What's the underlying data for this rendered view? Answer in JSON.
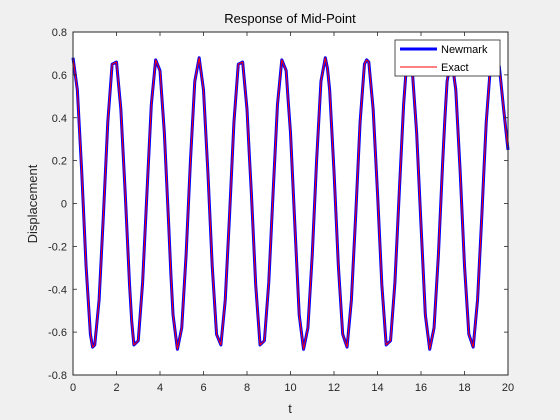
{
  "chart_data": {
    "type": "line",
    "title": "Response of Mid-Point",
    "xlabel": "t",
    "ylabel": "Displacement",
    "xlim": [
      0,
      20
    ],
    "ylim": [
      -0.8,
      0.8
    ],
    "xticks": [
      0,
      2,
      4,
      6,
      8,
      10,
      12,
      14,
      16,
      18,
      20
    ],
    "yticks": [
      -0.8,
      -0.6,
      -0.4,
      -0.2,
      0,
      0.2,
      0.4,
      0.6,
      0.8
    ],
    "x_tick_labels": [
      "0",
      "2",
      "4",
      "6",
      "8",
      "10",
      "12",
      "14",
      "16",
      "18",
      "20"
    ],
    "y_tick_labels": [
      "-0.8",
      "-0.6",
      "-0.4",
      "-0.2",
      "0",
      "0.2",
      "0.4",
      "0.6",
      "0.8"
    ],
    "grid": false,
    "legend_position": "top-right",
    "series": [
      {
        "name": "Newmark",
        "color": "#0000ff",
        "x": [
          0,
          0.2,
          0.4,
          0.6,
          0.8,
          0.9,
          1.0,
          1.2,
          1.4,
          1.6,
          1.8,
          2.0,
          2.2,
          2.4,
          2.6,
          2.7,
          2.8,
          3.0,
          3.2,
          3.4,
          3.6,
          3.8,
          4.0,
          4.2,
          4.4,
          4.5,
          4.6,
          4.8,
          5.0,
          5.2,
          5.4,
          5.6,
          5.8,
          6.0,
          6.2,
          6.3,
          6.4,
          6.6,
          6.8,
          7.0,
          7.2,
          7.4,
          7.6,
          7.8,
          8.0,
          8.1,
          8.2,
          8.4,
          8.6,
          8.8,
          9.0,
          9.2,
          9.4,
          9.6,
          9.8,
          9.9,
          10.0,
          10.2,
          10.4,
          10.6,
          10.8,
          11.0,
          11.2,
          11.4,
          11.6,
          11.7,
          11.8,
          12.0,
          12.2,
          12.4,
          12.6,
          12.8,
          13.0,
          13.2,
          13.4,
          13.5,
          13.6,
          13.8,
          14.0,
          14.2,
          14.4,
          14.6,
          14.8,
          15.0,
          15.2,
          15.3,
          15.4,
          15.6,
          15.8,
          16.0,
          16.2,
          16.4,
          16.6,
          16.8,
          17.0,
          17.1,
          17.2,
          17.4,
          17.6,
          17.8,
          18.0,
          18.2,
          18.4,
          18.6,
          18.8,
          18.9,
          19.0,
          19.2,
          19.4,
          19.6,
          19.8,
          20.0
        ],
        "y": [
          0.68,
          0.53,
          0.15,
          -0.29,
          -0.61,
          -0.67,
          -0.66,
          -0.45,
          -0.05,
          0.38,
          0.65,
          0.66,
          0.44,
          0.05,
          -0.38,
          -0.55,
          -0.66,
          -0.64,
          -0.37,
          0.05,
          0.46,
          0.67,
          0.62,
          0.33,
          -0.1,
          -0.33,
          -0.52,
          -0.68,
          -0.58,
          -0.24,
          0.2,
          0.57,
          0.68,
          0.53,
          0.15,
          -0.07,
          -0.29,
          -0.61,
          -0.66,
          -0.45,
          -0.05,
          0.38,
          0.65,
          0.66,
          0.44,
          0.24,
          0.05,
          -0.38,
          -0.66,
          -0.64,
          -0.37,
          0.05,
          0.46,
          0.67,
          0.62,
          0.47,
          0.33,
          -0.1,
          -0.52,
          -0.68,
          -0.58,
          -0.24,
          0.2,
          0.57,
          0.68,
          0.63,
          0.53,
          0.15,
          -0.29,
          -0.61,
          -0.67,
          -0.45,
          -0.05,
          0.38,
          0.65,
          0.67,
          0.66,
          0.44,
          0.05,
          -0.38,
          -0.66,
          -0.64,
          -0.37,
          0.05,
          0.46,
          0.6,
          0.67,
          0.62,
          0.33,
          -0.1,
          -0.52,
          -0.68,
          -0.58,
          -0.24,
          0.2,
          0.4,
          0.57,
          0.68,
          0.53,
          0.15,
          -0.29,
          -0.61,
          -0.67,
          -0.45,
          -0.05,
          0.17,
          0.38,
          0.65,
          0.66,
          0.64,
          0.44,
          0.25
        ]
      },
      {
        "name": "Exact",
        "color": "#ff0000",
        "x": [
          0,
          0.2,
          0.4,
          0.6,
          0.8,
          0.9,
          1.0,
          1.2,
          1.4,
          1.6,
          1.8,
          2.0,
          2.2,
          2.4,
          2.6,
          2.7,
          2.8,
          3.0,
          3.2,
          3.4,
          3.6,
          3.8,
          4.0,
          4.2,
          4.4,
          4.5,
          4.6,
          4.8,
          5.0,
          5.2,
          5.4,
          5.6,
          5.8,
          6.0,
          6.2,
          6.3,
          6.4,
          6.6,
          6.8,
          7.0,
          7.2,
          7.4,
          7.6,
          7.8,
          8.0,
          8.1,
          8.2,
          8.4,
          8.6,
          8.8,
          9.0,
          9.2,
          9.4,
          9.6,
          9.8,
          9.9,
          10.0,
          10.2,
          10.4,
          10.6,
          10.8,
          11.0,
          11.2,
          11.4,
          11.6,
          11.7,
          11.8,
          12.0,
          12.2,
          12.4,
          12.6,
          12.8,
          13.0,
          13.2,
          13.4,
          13.5,
          13.6,
          13.8,
          14.0,
          14.2,
          14.4,
          14.6,
          14.8,
          15.0,
          15.2,
          15.3,
          15.4,
          15.6,
          15.8,
          16.0,
          16.2,
          16.4,
          16.6,
          16.8,
          17.0,
          17.1,
          17.2,
          17.4,
          17.6,
          17.8,
          18.0,
          18.2,
          18.4,
          18.6,
          18.8,
          18.9,
          19.0,
          19.2,
          19.4,
          19.6,
          19.8,
          20.0
        ],
        "y": [
          0.68,
          0.53,
          0.15,
          -0.29,
          -0.61,
          -0.67,
          -0.66,
          -0.45,
          -0.05,
          0.38,
          0.65,
          0.66,
          0.44,
          0.05,
          -0.38,
          -0.55,
          -0.66,
          -0.64,
          -0.37,
          0.05,
          0.46,
          0.67,
          0.62,
          0.33,
          -0.1,
          -0.33,
          -0.52,
          -0.68,
          -0.58,
          -0.24,
          0.2,
          0.57,
          0.68,
          0.53,
          0.15,
          -0.07,
          -0.29,
          -0.61,
          -0.66,
          -0.45,
          -0.05,
          0.38,
          0.65,
          0.66,
          0.44,
          0.24,
          0.05,
          -0.38,
          -0.66,
          -0.64,
          -0.37,
          0.05,
          0.46,
          0.67,
          0.62,
          0.47,
          0.33,
          -0.1,
          -0.52,
          -0.68,
          -0.58,
          -0.24,
          0.2,
          0.57,
          0.68,
          0.63,
          0.53,
          0.15,
          -0.29,
          -0.61,
          -0.67,
          -0.45,
          -0.05,
          0.38,
          0.65,
          0.67,
          0.66,
          0.44,
          0.05,
          -0.38,
          -0.66,
          -0.64,
          -0.37,
          0.05,
          0.46,
          0.6,
          0.67,
          0.62,
          0.33,
          -0.1,
          -0.52,
          -0.68,
          -0.58,
          -0.24,
          0.2,
          0.4,
          0.57,
          0.68,
          0.53,
          0.15,
          -0.29,
          -0.61,
          -0.67,
          -0.45,
          -0.05,
          0.17,
          0.38,
          0.65,
          0.66,
          0.64,
          0.44,
          0.25
        ]
      }
    ]
  }
}
